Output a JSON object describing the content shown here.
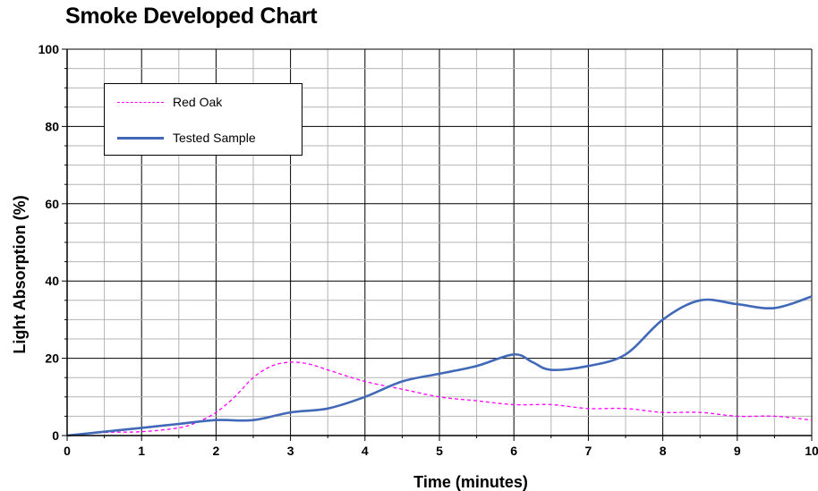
{
  "chart_data": {
    "type": "line",
    "title": "Smoke Developed Chart",
    "xlabel": "Time (minutes)",
    "ylabel": "Light Absorption (%)",
    "xlim": [
      0,
      10
    ],
    "ylim": [
      0,
      100
    ],
    "x_ticks": [
      "0",
      "1",
      "2",
      "3",
      "4",
      "5",
      "6",
      "7",
      "8",
      "9",
      "10"
    ],
    "y_ticks": [
      "0",
      "20",
      "40",
      "60",
      "80",
      "100"
    ],
    "grid": true,
    "legend_position": "top-left",
    "series": [
      {
        "name": "Red Oak",
        "color": "#ff00ff",
        "style": "dashed",
        "x": [
          0,
          0.5,
          1,
          1.5,
          1.75,
          2,
          2.25,
          2.5,
          2.75,
          3,
          3.25,
          3.5,
          4,
          4.5,
          5,
          5.5,
          6,
          6.5,
          7,
          7.5,
          8,
          8.5,
          9,
          9.5,
          10
        ],
        "y": [
          0,
          0.8,
          1,
          2,
          3.5,
          6,
          10,
          15,
          18,
          19,
          18.5,
          17,
          14,
          12,
          10,
          9,
          8,
          8,
          7,
          7,
          6,
          6,
          5,
          5,
          4
        ]
      },
      {
        "name": "Tested Sample",
        "color": "#4169b7",
        "style": "solid",
        "x": [
          0,
          0.5,
          1,
          1.5,
          2,
          2.5,
          3,
          3.5,
          4,
          4.5,
          5,
          5.5,
          6,
          6.25,
          6.5,
          7,
          7.5,
          8,
          8.5,
          9,
          9.5,
          10
        ],
        "y": [
          0,
          1,
          2,
          3,
          4,
          4,
          6,
          7,
          10,
          14,
          16,
          18,
          21,
          19,
          17,
          18,
          21,
          30,
          35,
          34,
          33,
          36
        ]
      }
    ]
  }
}
